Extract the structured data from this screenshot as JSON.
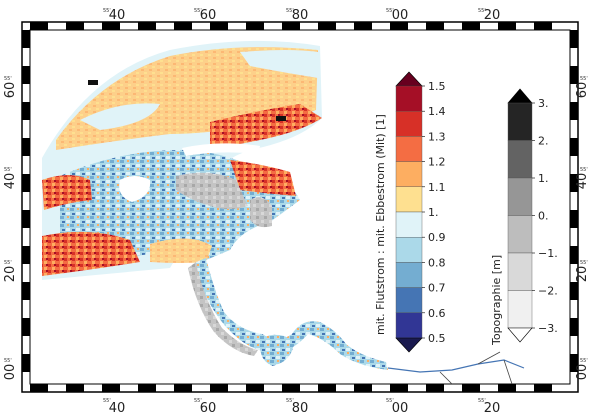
{
  "frame_ticks": {
    "top": [
      "40",
      "60",
      "80",
      "00",
      "20"
    ],
    "bottom": [
      "40",
      "60",
      "80",
      "00",
      "20"
    ],
    "left": [
      "60",
      "40",
      "20",
      "00"
    ],
    "right": [
      "60",
      "40",
      "20",
      "00"
    ],
    "minute_prefix": "55'"
  },
  "ratio_colorbar": {
    "label": "mit. Flutstrom : mit. Ebbestrom (Mit) [1]",
    "ticks": [
      "1.5",
      "1.4",
      "1.3",
      "1.2",
      "1.1",
      "1.",
      "0.9",
      "0.8",
      "0.7",
      "0.6",
      "0.5"
    ],
    "colors": [
      "#a50f26",
      "#d73027",
      "#f46d43",
      "#fdae61",
      "#fee090",
      "#e0f3f8",
      "#abd9e9",
      "#74add1",
      "#4575b4",
      "#313695"
    ],
    "over_color": "#67001f",
    "under_color": "#1a1a4f"
  },
  "topo_colorbar": {
    "label": "Topographie [m]",
    "ticks": [
      "3.",
      "2.",
      "1.",
      "0.",
      "−1.",
      "−2.",
      "−3."
    ],
    "colors": [
      "#252525",
      "#636363",
      "#969696",
      "#bdbdbd",
      "#d9d9d9",
      "#f0f0f0"
    ],
    "over_color": "#000000",
    "under_color": "#ffffff"
  },
  "map": {
    "sea_colors": {
      "light_blue": "#e0f3f8",
      "orange": "#fdd08a",
      "deep_orange": "#f46d43",
      "red": "#d73027",
      "blue": "#74add1",
      "dark_blue": "#4575b4",
      "gray": "#b5b5b5",
      "white_land": "#ffffff"
    }
  }
}
